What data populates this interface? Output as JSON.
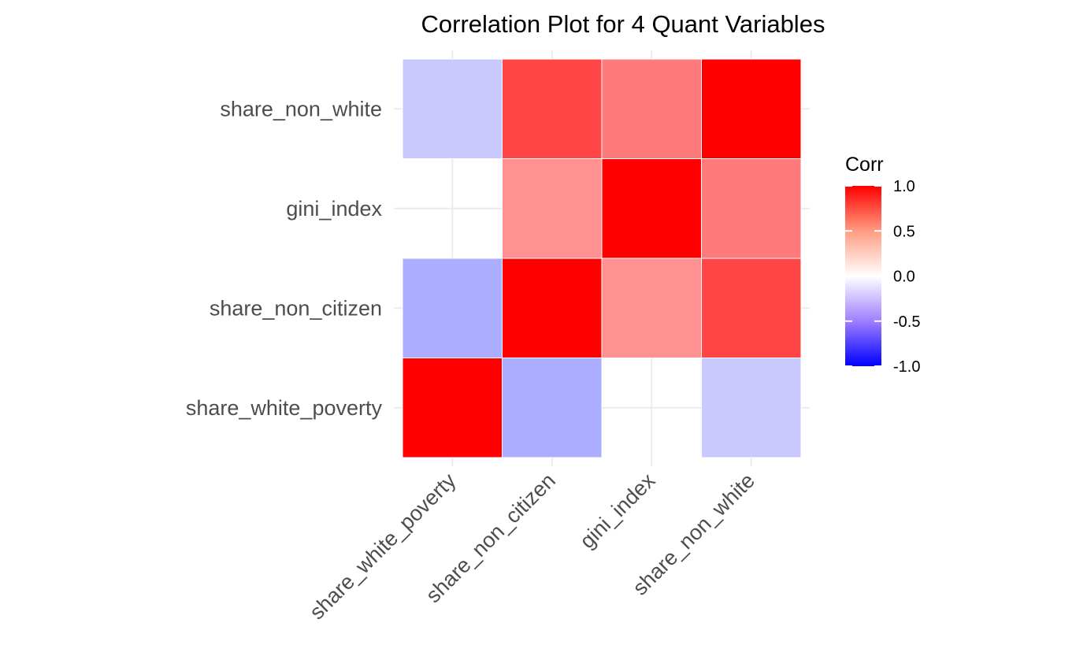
{
  "chart_data": {
    "type": "heatmap",
    "title": "Correlation Plot for 4 Quant Variables",
    "xlabel": "",
    "ylabel": "",
    "x_categories": [
      "share_white_poverty",
      "share_non_citizen",
      "gini_index",
      "share_non_white"
    ],
    "y_categories": [
      "share_white_poverty",
      "share_non_citizen",
      "gini_index",
      "share_non_white"
    ],
    "values": [
      [
        1.0,
        -0.32,
        null,
        -0.21
      ],
      [
        -0.32,
        1.0,
        0.43,
        0.73
      ],
      [
        null,
        0.43,
        1.0,
        0.52
      ],
      [
        -0.21,
        0.73,
        0.52,
        1.0
      ]
    ],
    "colorscale": {
      "low": "#0000FF",
      "mid": "#FFFFFF",
      "high": "#FF0000",
      "limits": [
        -1.0,
        1.0
      ]
    },
    "legend": {
      "title": "Corr",
      "ticks": [
        "1.0",
        "0.5",
        "0.0",
        "-0.5",
        "-1.0"
      ],
      "placement": "right"
    },
    "grid": true
  }
}
